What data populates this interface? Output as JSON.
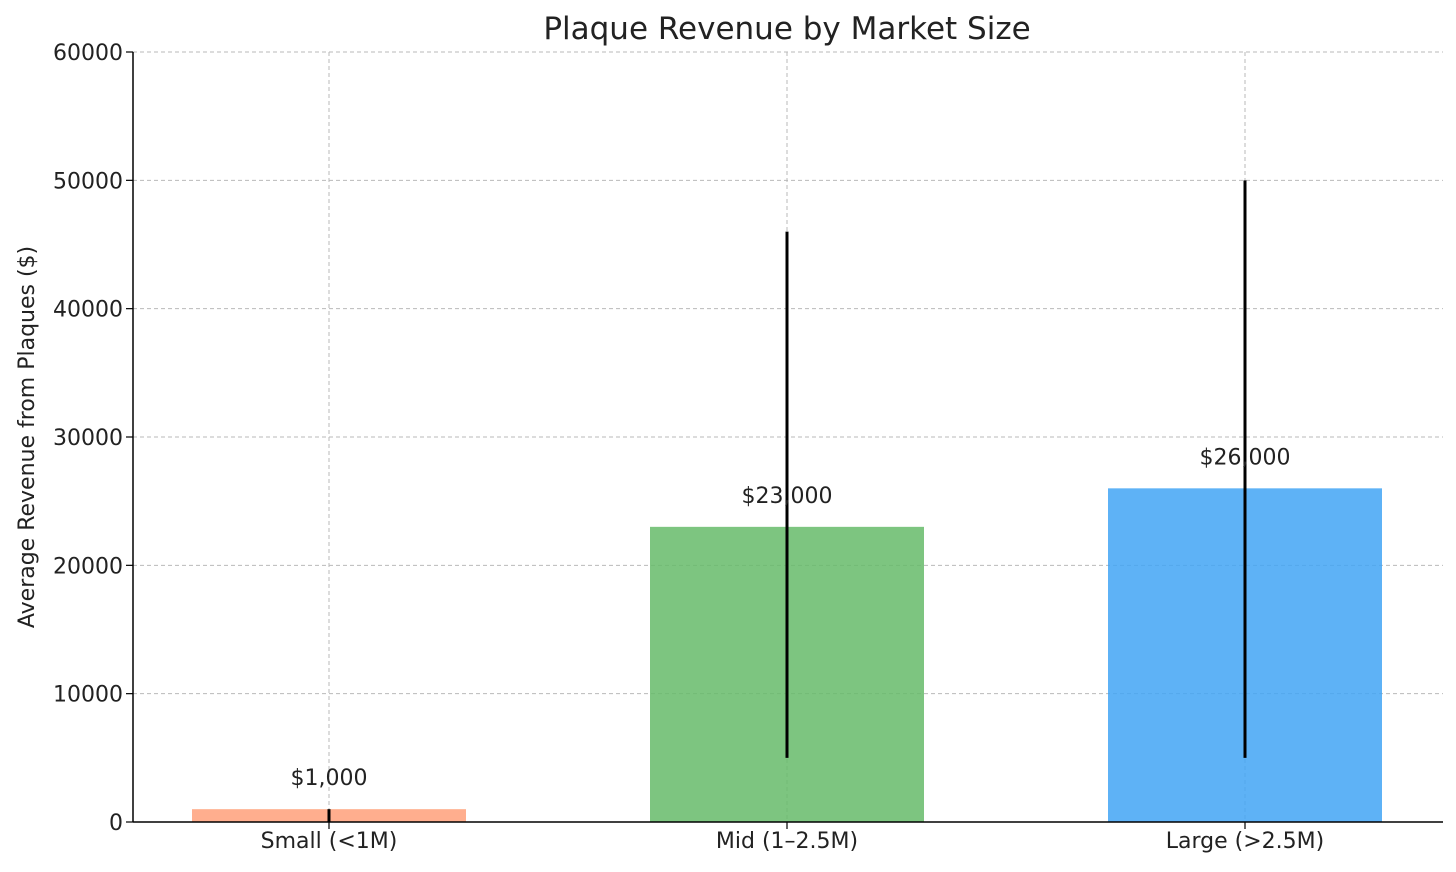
{
  "chart_data": {
    "type": "bar",
    "title": "Plaque Revenue by Market Size",
    "xlabel": "",
    "ylabel": "Average Revenue from Plaques ($)",
    "categories": [
      "Small (<1M)",
      "Mid (1–2.5M)",
      "Large (>2.5M)"
    ],
    "values": [
      1000,
      23000,
      26000
    ],
    "data_labels": [
      "$1,000",
      "$23,000",
      "$26,000"
    ],
    "error_bars": [
      {
        "low": 0,
        "high": 1000
      },
      {
        "low": 5000,
        "high": 46000
      },
      {
        "low": 5000,
        "high": 50000
      }
    ],
    "colors": [
      "#FFA07A",
      "#66BB6A",
      "#42A5F5"
    ],
    "ylim": [
      0,
      60000
    ],
    "yticks": [
      0,
      10000,
      20000,
      30000,
      40000,
      50000,
      60000
    ],
    "ytick_labels": [
      "0",
      "10000",
      "20000",
      "30000",
      "40000",
      "50000",
      "60000"
    ],
    "grid": true,
    "legend": "none"
  }
}
